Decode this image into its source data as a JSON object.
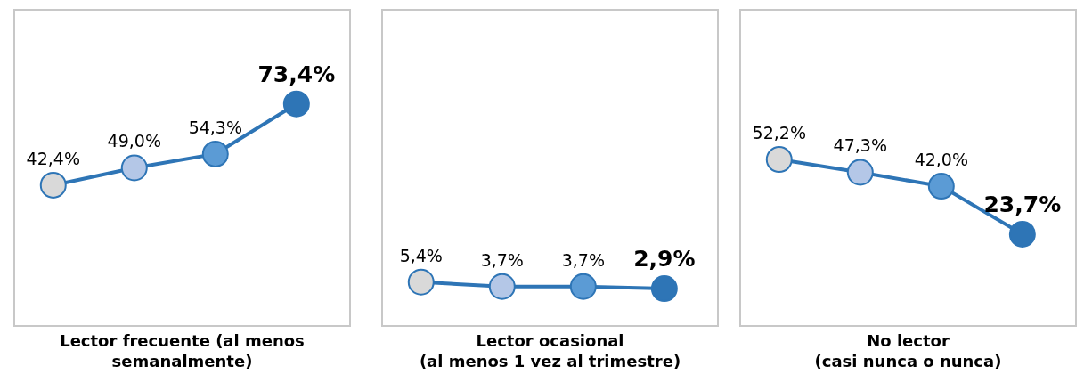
{
  "chart_data": [
    {
      "type": "line",
      "xlabel": "Lector frecuente (al menos\nsemanalmente)",
      "categories": [
        null,
        null,
        null,
        null
      ],
      "series": [
        {
          "color": "#2e75b6",
          "colors": [
            "#d9d9d9",
            "#b4c7e7",
            "#5b9bd5",
            "#2e75b6"
          ],
          "values": [
            42.4,
            49.0,
            54.3,
            73.4
          ],
          "value_labels": [
            "42,4%",
            "49,0%",
            "54,3%",
            "73,4%"
          ]
        }
      ],
      "ylim": [
        -11,
        109
      ],
      "marker": "circle",
      "grid": false
    },
    {
      "type": "line",
      "xlabel": "Lector ocasional\n(al menos 1 vez al trimestre)",
      "categories": [
        null,
        null,
        null,
        null
      ],
      "series": [
        {
          "color": "#2e75b6",
          "colors": [
            "#d9d9d9",
            "#b4c7e7",
            "#5b9bd5",
            "#2e75b6"
          ],
          "values": [
            5.4,
            3.7,
            3.7,
            2.9
          ],
          "value_labels": [
            "5,4%",
            "3,7%",
            "3,7%",
            "2,9%"
          ]
        }
      ],
      "ylim": [
        -11,
        109
      ],
      "marker": "circle",
      "grid": false
    },
    {
      "type": "line",
      "xlabel": "No lector\n(casi nunca o nunca)",
      "categories": [
        null,
        null,
        null,
        null
      ],
      "series": [
        {
          "color": "#2e75b6",
          "colors": [
            "#d9d9d9",
            "#b4c7e7",
            "#5b9bd5",
            "#2e75b6"
          ],
          "values": [
            52.2,
            47.3,
            42.0,
            23.7
          ],
          "value_labels": [
            "52,2%",
            "47,3%",
            "42,0%",
            "23,7%"
          ]
        }
      ],
      "ylim": [
        -11,
        109
      ],
      "marker": "circle",
      "grid": false
    }
  ]
}
